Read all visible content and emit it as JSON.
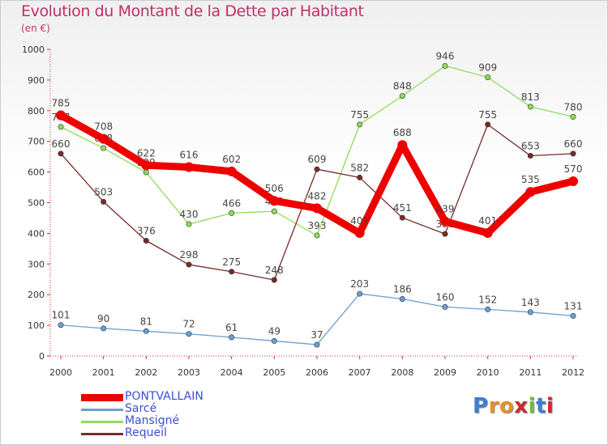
{
  "title": "Evolution du Montant de la Dette par Habitant",
  "subtitle": "(en €)",
  "logo_text": "Proxiti",
  "chart_data": {
    "type": "line",
    "title": "Evolution du Montant de la Dette par Habitant",
    "subtitle": "(en €)",
    "xlabel": "",
    "ylabel": "",
    "x": [
      "2000",
      "2001",
      "2002",
      "2003",
      "2004",
      "2005",
      "2006",
      "2007",
      "2008",
      "2009",
      "2010",
      "2011",
      "2012"
    ],
    "ylim": [
      0,
      1000
    ],
    "yticks": [
      0,
      100,
      200,
      300,
      400,
      500,
      600,
      700,
      800,
      900,
      1000
    ],
    "grid": false,
    "legend_position": "bottom-left",
    "series": [
      {
        "name": "Sarcé",
        "color": "#6a9fd0",
        "values": [
          101,
          90,
          81,
          72,
          61,
          49,
          37,
          203,
          186,
          160,
          152,
          143,
          131
        ],
        "labels": [
          "101",
          "90",
          "81",
          "72",
          "61",
          "49",
          "37",
          "203",
          "186",
          "160",
          "152",
          "143",
          "131"
        ]
      },
      {
        "name": "Mansigné",
        "color": "#8fdc5a",
        "values": [
          747,
          678,
          599,
          430,
          466,
          472,
          393,
          755,
          848,
          946,
          909,
          813,
          780
        ],
        "labels": [
          "747",
          "678",
          "599",
          "430",
          "466",
          "472",
          "393",
          "755",
          "848",
          "946",
          "909",
          "813",
          "780"
        ]
      },
      {
        "name": "Requeil",
        "color": "#7a2a2a",
        "values": [
          660,
          503,
          376,
          298,
          275,
          248,
          609,
          582,
          451,
          398,
          755,
          653,
          660
        ],
        "labels": [
          "660",
          "503",
          "376",
          "298",
          "275",
          "248",
          "609",
          "582",
          "451",
          "398",
          "755",
          "653",
          "660"
        ]
      },
      {
        "name": "PONTVALLAIN",
        "color": "#ee0000",
        "values": [
          785,
          708,
          622,
          616,
          602,
          506,
          482,
          401,
          688,
          439,
          401,
          535,
          570
        ],
        "labels": [
          "785",
          "708",
          "622",
          "616",
          "602",
          "506",
          "482",
          "401",
          "688",
          "439",
          "401",
          "535",
          "570"
        ]
      }
    ],
    "legend": [
      "PONTVALLAIN",
      "Sarcé",
      "Mansigné",
      "Requeil"
    ]
  }
}
